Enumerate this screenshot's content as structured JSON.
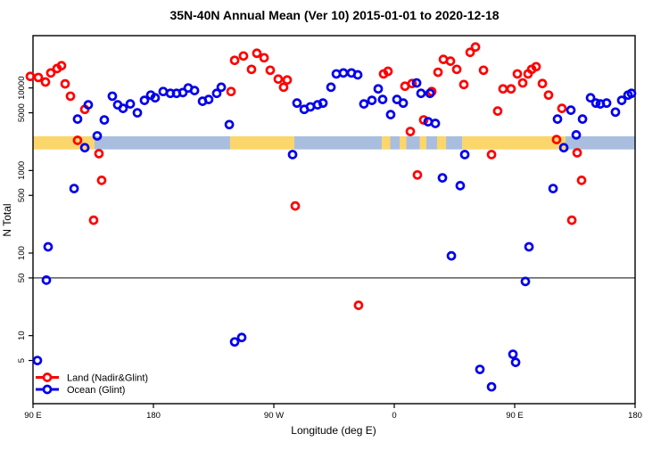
{
  "chart_data": {
    "type": "scatter",
    "title": "35N-40N Annual Mean (Ver 10)   2015-01-01 to 2020-12-18",
    "xlabel": "Longitude (deg E)",
    "ylabel": "N Total",
    "x_scale": "longitude-wrapped",
    "y_scale": "log10",
    "xlim": [
      90,
      540
    ],
    "ylim": [
      1.5,
      43000
    ],
    "grid": "off",
    "x_ticks": [
      {
        "value": 90,
        "label": "90 E"
      },
      {
        "value": 180,
        "label": "180"
      },
      {
        "value": 270,
        "label": "90 W"
      },
      {
        "value": 360,
        "label": "0"
      },
      {
        "value": 450,
        "label": "90 E"
      },
      {
        "value": 540,
        "label": "180"
      }
    ],
    "y_ticks": [
      {
        "value": 10000,
        "label": "10000"
      },
      {
        "value": 5000,
        "label": "5000"
      },
      {
        "value": 1000,
        "label": "1000"
      },
      {
        "value": 500,
        "label": "500"
      },
      {
        "value": 100,
        "label": "100"
      },
      {
        "value": 50,
        "label": "50"
      },
      {
        "value": 10,
        "label": "10"
      },
      {
        "value": 5,
        "label": "5"
      }
    ],
    "reference_line": {
      "value": 50,
      "color": "#3a3a3a"
    },
    "surface_band": {
      "value_top": 2600,
      "value_bottom": 1800,
      "land_color": "#fbd66b",
      "ocean_color": "#a9bedf",
      "segments": [
        {
          "from": 90,
          "to": 136,
          "surface": "land"
        },
        {
          "from": 136,
          "to": 237.3,
          "surface": "ocean"
        },
        {
          "from": 237.3,
          "to": 285.3,
          "surface": "land"
        },
        {
          "from": 285.3,
          "to": 350.7,
          "surface": "ocean"
        },
        {
          "from": 350.7,
          "to": 357,
          "surface": "land"
        },
        {
          "from": 357,
          "to": 364,
          "surface": "ocean"
        },
        {
          "from": 364,
          "to": 369,
          "surface": "land"
        },
        {
          "from": 369,
          "to": 379,
          "surface": "ocean"
        },
        {
          "from": 379,
          "to": 384,
          "surface": "land"
        },
        {
          "from": 384,
          "to": 392,
          "surface": "ocean"
        },
        {
          "from": 392,
          "to": 398.7,
          "surface": "land"
        },
        {
          "from": 398.7,
          "to": 410.7,
          "surface": "ocean"
        },
        {
          "from": 410.7,
          "to": 488,
          "surface": "land"
        },
        {
          "from": 488,
          "to": 540,
          "surface": "ocean"
        }
      ]
    },
    "series": [
      {
        "name": "Land (Nadir&Glint)",
        "color": "#ff0000",
        "points": [
          [
            88,
            13800
          ],
          [
            94,
            13400
          ],
          [
            99.3,
            11800
          ],
          [
            103.3,
            15200
          ],
          [
            108,
            17200
          ],
          [
            111.3,
            18600
          ],
          [
            114,
            11200
          ],
          [
            118,
            7950
          ],
          [
            123.3,
            2320
          ],
          [
            128.7,
            5500
          ],
          [
            135.3,
            250
          ],
          [
            139.3,
            1600
          ],
          [
            141.3,
            760
          ],
          [
            238,
            9050
          ],
          [
            240.7,
            21600
          ],
          [
            247.3,
            24400
          ],
          [
            253.3,
            16800
          ],
          [
            257.3,
            26300
          ],
          [
            262.7,
            23200
          ],
          [
            267.3,
            16400
          ],
          [
            273.3,
            12800
          ],
          [
            277.3,
            10200
          ],
          [
            280,
            12500
          ],
          [
            286,
            372
          ],
          [
            333.3,
            23.3
          ],
          [
            352,
            14800
          ],
          [
            355.3,
            15900
          ],
          [
            368,
            10500
          ],
          [
            372,
            2970
          ],
          [
            373.3,
            11300
          ],
          [
            377.3,
            884
          ],
          [
            382,
            4100
          ],
          [
            388,
            9050
          ],
          [
            392.7,
            15500
          ],
          [
            396.7,
            22200
          ],
          [
            402,
            21100
          ],
          [
            406.7,
            16800
          ],
          [
            412,
            11000
          ],
          [
            416.7,
            27000
          ],
          [
            420.7,
            31300
          ],
          [
            426.7,
            16400
          ],
          [
            432.7,
            1560
          ],
          [
            437.3,
            5250
          ],
          [
            441.3,
            9750
          ],
          [
            447.3,
            9750
          ],
          [
            452,
            14800
          ],
          [
            456,
            11500
          ],
          [
            460,
            14800
          ],
          [
            462.7,
            16800
          ],
          [
            466,
            18100
          ],
          [
            470.7,
            11300
          ],
          [
            475.3,
            8200
          ],
          [
            481.3,
            2370
          ],
          [
            485.3,
            5660
          ],
          [
            492.7,
            250
          ],
          [
            496.7,
            1640
          ],
          [
            500,
            760
          ]
        ]
      },
      {
        "name": "Ocean (Glint)",
        "color": "#0000ee",
        "points": [
          [
            93.3,
            5.0
          ],
          [
            100,
            47
          ],
          [
            101.3,
            119
          ],
          [
            120.7,
            605
          ],
          [
            123.3,
            4200
          ],
          [
            128.7,
            1890
          ],
          [
            131.3,
            6250
          ],
          [
            138,
            2630
          ],
          [
            143.3,
            4100
          ],
          [
            149.3,
            7950
          ],
          [
            153.3,
            6250
          ],
          [
            157.3,
            5660
          ],
          [
            162.7,
            6400
          ],
          [
            168,
            5000
          ],
          [
            173.3,
            7080
          ],
          [
            178,
            8200
          ],
          [
            181.3,
            7600
          ],
          [
            187.3,
            9050
          ],
          [
            192.7,
            8600
          ],
          [
            197.3,
            8600
          ],
          [
            202,
            8800
          ],
          [
            206,
            10000
          ],
          [
            210.7,
            9300
          ],
          [
            216.7,
            6900
          ],
          [
            221.3,
            7250
          ],
          [
            227.3,
            8600
          ],
          [
            230.7,
            10200
          ],
          [
            236.7,
            3600
          ],
          [
            240.7,
            8.4
          ],
          [
            246,
            9.5
          ],
          [
            284,
            1560
          ],
          [
            287.3,
            6560
          ],
          [
            292.7,
            5500
          ],
          [
            297.3,
            5900
          ],
          [
            302.7,
            6250
          ],
          [
            306.7,
            6560
          ],
          [
            312.7,
            10200
          ],
          [
            316.7,
            14800
          ],
          [
            322,
            15200
          ],
          [
            328,
            15200
          ],
          [
            332.7,
            14400
          ],
          [
            337.3,
            6400
          ],
          [
            343.3,
            7080
          ],
          [
            348,
            9750
          ],
          [
            351.3,
            7250
          ],
          [
            357.3,
            4750
          ],
          [
            362,
            7250
          ],
          [
            366.7,
            6560
          ],
          [
            376.7,
            11500
          ],
          [
            380,
            8600
          ],
          [
            385.3,
            3900
          ],
          [
            386.7,
            8600
          ],
          [
            390.7,
            3720
          ],
          [
            396,
            815
          ],
          [
            402.7,
            92.6
          ],
          [
            409.3,
            655
          ],
          [
            412.7,
            1560
          ],
          [
            424,
            3.9
          ],
          [
            432.7,
            2.4
          ],
          [
            448.7,
            5.95
          ],
          [
            450.7,
            4.75
          ],
          [
            458,
            45.3
          ],
          [
            460.7,
            119
          ],
          [
            478.7,
            605
          ],
          [
            482,
            4200
          ],
          [
            486.7,
            1890
          ],
          [
            492,
            5380
          ],
          [
            496,
            2700
          ],
          [
            500.7,
            4200
          ],
          [
            506.7,
            7600
          ],
          [
            510.7,
            6560
          ],
          [
            514,
            6400
          ],
          [
            518.7,
            6560
          ],
          [
            525.3,
            5100
          ],
          [
            530,
            7080
          ],
          [
            534.7,
            8200
          ],
          [
            537.3,
            8600
          ]
        ]
      }
    ],
    "legend": {
      "position": "bottom-left",
      "items": [
        {
          "label": "Land (Nadir&Glint)",
          "color": "#ff0000"
        },
        {
          "label": "Ocean (Glint)",
          "color": "#0000ee"
        }
      ]
    }
  }
}
